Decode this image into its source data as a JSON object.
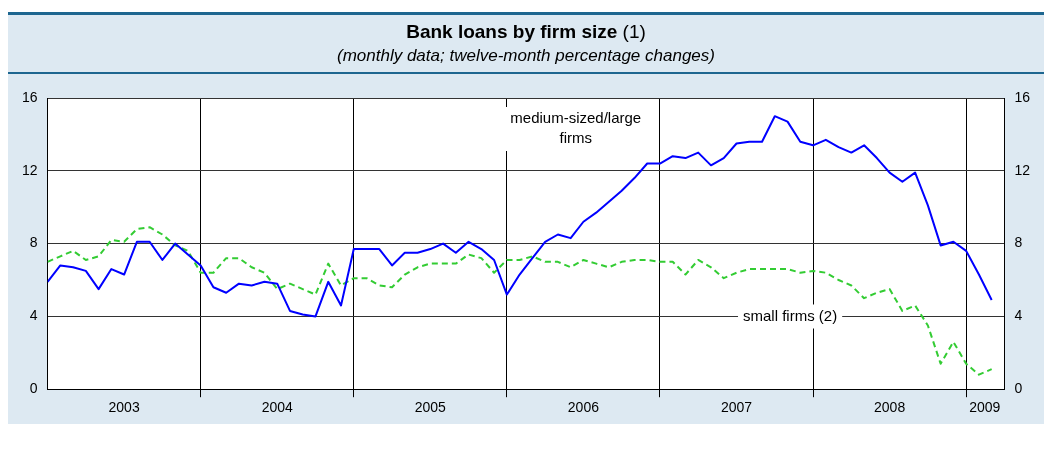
{
  "chart_data": {
    "type": "line",
    "title": "Bank loans by firm size (1)",
    "subtitle": "(monthly data; twelve-month percentage changes)",
    "x": [
      "2003-01",
      "2003-02",
      "2003-03",
      "2003-04",
      "2003-05",
      "2003-06",
      "2003-07",
      "2003-08",
      "2003-09",
      "2003-10",
      "2003-11",
      "2003-12",
      "2004-01",
      "2004-02",
      "2004-03",
      "2004-04",
      "2004-05",
      "2004-06",
      "2004-07",
      "2004-08",
      "2004-09",
      "2004-10",
      "2004-11",
      "2004-12",
      "2005-01",
      "2005-02",
      "2005-03",
      "2005-04",
      "2005-05",
      "2005-06",
      "2005-07",
      "2005-08",
      "2005-09",
      "2005-10",
      "2005-11",
      "2005-12",
      "2006-01",
      "2006-02",
      "2006-03",
      "2006-04",
      "2006-05",
      "2006-06",
      "2006-07",
      "2006-08",
      "2006-09",
      "2006-10",
      "2006-11",
      "2006-12",
      "2007-01",
      "2007-02",
      "2007-03",
      "2007-04",
      "2007-05",
      "2007-06",
      "2007-07",
      "2007-08",
      "2007-09",
      "2007-10",
      "2007-11",
      "2007-12",
      "2008-01",
      "2008-02",
      "2008-03",
      "2008-04",
      "2008-05",
      "2008-06",
      "2008-07",
      "2008-08",
      "2008-09",
      "2008-10",
      "2008-11",
      "2008-12",
      "2009-01",
      "2009-02",
      "2009-03"
    ],
    "series": [
      {
        "name": "medium-sized/large firms",
        "color": "#0000ff",
        "line_style": "solid",
        "values": [
          5.9,
          6.8,
          6.7,
          6.5,
          5.5,
          6.6,
          6.3,
          8.1,
          8.1,
          7.1,
          8.0,
          7.4,
          6.8,
          5.6,
          5.3,
          5.8,
          5.7,
          5.9,
          5.8,
          4.3,
          4.1,
          4.0,
          5.9,
          4.6,
          7.7,
          7.7,
          7.7,
          6.8,
          7.5,
          7.5,
          7.7,
          8.0,
          7.5,
          8.1,
          7.7,
          7.1,
          5.2,
          6.3,
          7.2,
          8.1,
          8.5,
          8.3,
          9.2,
          9.7,
          10.3,
          10.9,
          11.6,
          12.4,
          12.4,
          12.8,
          12.7,
          13.0,
          12.3,
          12.7,
          13.5,
          13.6,
          13.6,
          15.0,
          14.7,
          13.6,
          13.4,
          13.7,
          13.3,
          13.0,
          13.4,
          12.7,
          11.9,
          11.4,
          11.9,
          10.1,
          7.9,
          8.1,
          7.6,
          6.3,
          4.9
        ]
      },
      {
        "name": "small firms (2)",
        "color": "#33cc33",
        "line_style": "dashed",
        "values": [
          7.0,
          7.3,
          7.6,
          7.1,
          7.3,
          8.2,
          8.1,
          8.8,
          8.9,
          8.5,
          7.9,
          7.6,
          6.4,
          6.4,
          7.2,
          7.2,
          6.7,
          6.4,
          5.5,
          5.8,
          5.5,
          5.2,
          6.9,
          5.7,
          6.1,
          6.1,
          5.7,
          5.6,
          6.3,
          6.7,
          6.9,
          6.9,
          6.9,
          7.4,
          7.2,
          6.4,
          7.1,
          7.1,
          7.3,
          7.0,
          7.0,
          6.7,
          7.1,
          6.9,
          6.7,
          7.0,
          7.1,
          7.1,
          7.0,
          7.0,
          6.3,
          7.1,
          6.7,
          6.1,
          6.4,
          6.6,
          6.6,
          6.6,
          6.6,
          6.4,
          6.5,
          6.4,
          6.0,
          5.7,
          5.0,
          5.3,
          5.5,
          4.3,
          4.6,
          3.5,
          1.4,
          2.6,
          1.4,
          0.8,
          1.1
        ]
      }
    ],
    "xlim": [
      "2003-01",
      "2009-04"
    ],
    "xticks": [
      {
        "value": "2003-01",
        "label": null
      },
      {
        "value": "2003-07",
        "label": "2003"
      },
      {
        "value": "2004-01",
        "label": null
      },
      {
        "value": "2004-07",
        "label": "2004"
      },
      {
        "value": "2005-01",
        "label": null
      },
      {
        "value": "2005-07",
        "label": "2005"
      },
      {
        "value": "2006-01",
        "label": null
      },
      {
        "value": "2006-07",
        "label": "2006"
      },
      {
        "value": "2007-01",
        "label": null
      },
      {
        "value": "2007-07",
        "label": "2007"
      },
      {
        "value": "2008-01",
        "label": null
      },
      {
        "value": "2008-07",
        "label": "2008"
      },
      {
        "value": "2009-01",
        "label": null
      },
      {
        "value": "2009-02-15",
        "label": "2009"
      }
    ],
    "ylim": [
      0,
      16
    ],
    "yticks": [
      0,
      4,
      8,
      12,
      16
    ],
    "y2lim": [
      0,
      16
    ],
    "y2ticks": [
      0,
      4,
      8,
      12,
      16
    ],
    "grid": true,
    "legend": false,
    "marker": "none"
  }
}
